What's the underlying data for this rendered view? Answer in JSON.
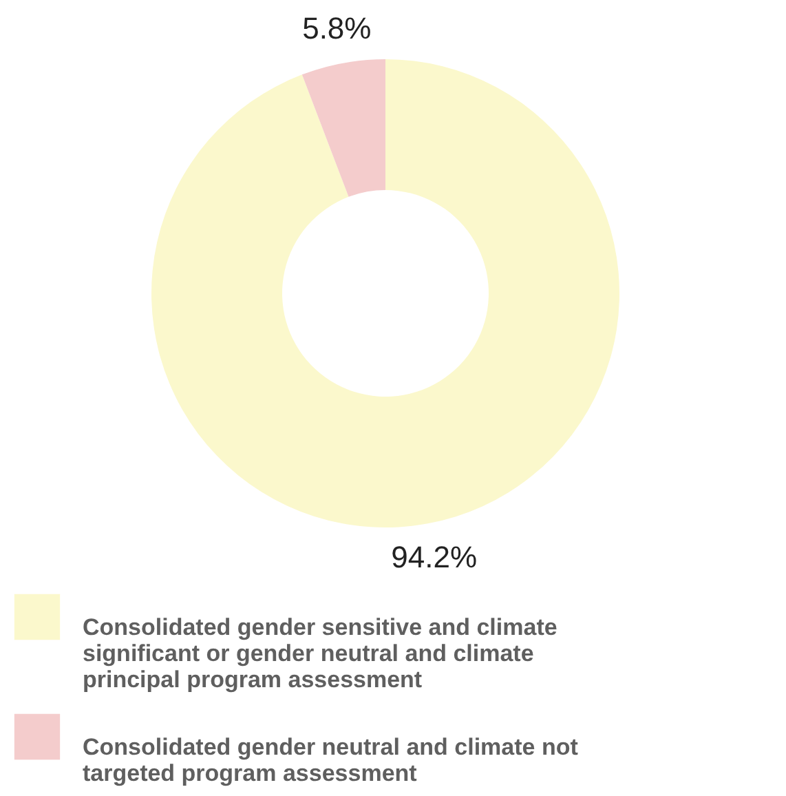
{
  "chart_data": {
    "type": "donut",
    "categories": [
      "Consolidated gender sensitive and climate significant or gender neutral and climate principal program assessment",
      "Consolidated gender neutral and climate not targeted  program assessment"
    ],
    "values": [
      94.2,
      5.8
    ],
    "colors": [
      "#fbf8cc",
      "#f4cccc"
    ],
    "value_labels": [
      "94.2%",
      "5.8%"
    ],
    "legend": "bottom"
  }
}
